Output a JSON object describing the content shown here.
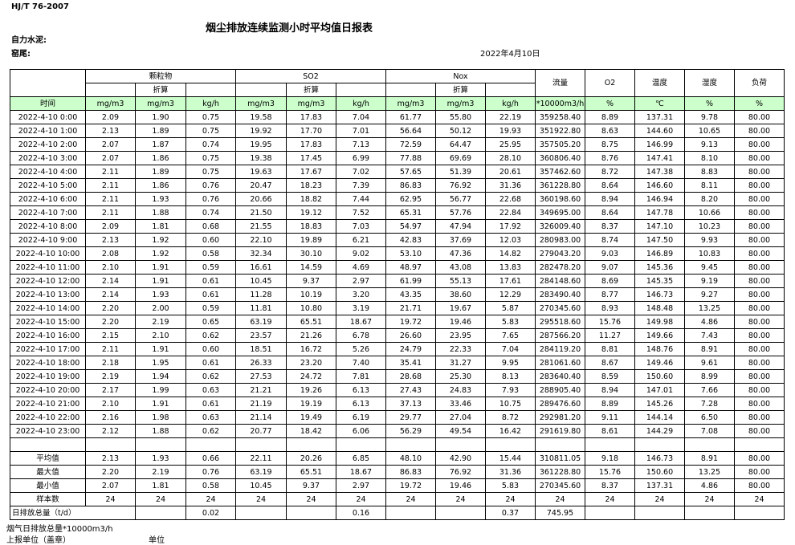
{
  "header": {
    "standard": "HJ/T  76-2007",
    "title": "烟尘排放连续监测小时平均值日报表",
    "company": "自力水泥:",
    "unit": "窑尾:",
    "date": "2022年4月10日"
  },
  "table": {
    "groups": [
      "颗粒物",
      "SO2",
      "Nox"
    ],
    "sub": [
      "折算",
      "折算",
      "折算"
    ],
    "single_headers": [
      "流量",
      "O2",
      "温度",
      "湿度",
      "负荷"
    ],
    "units": [
      "时间",
      "mg/m3",
      "mg/m3",
      "kg/h",
      "mg/m3",
      "mg/m3",
      "kg/h",
      "mg/m3",
      "mg/m3",
      "kg/h",
      "*10000m3/h",
      "%",
      "℃",
      "%",
      "%"
    ],
    "rows": [
      [
        "2022-4-10 0:00",
        "2.09",
        "1.90",
        "0.75",
        "19.58",
        "17.83",
        "7.04",
        "61.77",
        "55.80",
        "22.19",
        "359258.40",
        "8.89",
        "137.31",
        "9.78",
        "80.00"
      ],
      [
        "2022-4-10 1:00",
        "2.13",
        "1.89",
        "0.75",
        "19.92",
        "17.70",
        "7.01",
        "56.64",
        "50.12",
        "19.93",
        "351922.80",
        "8.63",
        "144.60",
        "10.65",
        "80.00"
      ],
      [
        "2022-4-10 2:00",
        "2.07",
        "1.87",
        "0.74",
        "19.95",
        "17.83",
        "7.13",
        "72.59",
        "64.47",
        "25.95",
        "357505.20",
        "8.75",
        "146.99",
        "9.13",
        "80.00"
      ],
      [
        "2022-4-10 3:00",
        "2.07",
        "1.86",
        "0.75",
        "19.38",
        "17.45",
        "6.99",
        "77.88",
        "69.69",
        "28.10",
        "360806.40",
        "8.76",
        "147.41",
        "8.10",
        "80.00"
      ],
      [
        "2022-4-10 4:00",
        "2.11",
        "1.89",
        "0.75",
        "19.63",
        "17.67",
        "7.02",
        "57.65",
        "51.39",
        "20.61",
        "357462.60",
        "8.72",
        "147.38",
        "8.83",
        "80.00"
      ],
      [
        "2022-4-10 5:00",
        "2.11",
        "1.86",
        "0.76",
        "20.47",
        "18.23",
        "7.39",
        "86.83",
        "76.92",
        "31.36",
        "361228.80",
        "8.64",
        "146.60",
        "8.11",
        "80.00"
      ],
      [
        "2022-4-10 6:00",
        "2.11",
        "1.93",
        "0.76",
        "20.66",
        "18.82",
        "7.44",
        "62.95",
        "56.77",
        "22.68",
        "360198.60",
        "8.94",
        "146.94",
        "8.20",
        "80.00"
      ],
      [
        "2022-4-10 7:00",
        "2.11",
        "1.88",
        "0.74",
        "21.50",
        "19.12",
        "7.52",
        "65.31",
        "57.76",
        "22.84",
        "349695.00",
        "8.64",
        "147.78",
        "10.66",
        "80.00"
      ],
      [
        "2022-4-10 8:00",
        "2.09",
        "1.81",
        "0.68",
        "21.55",
        "18.83",
        "7.03",
        "54.97",
        "47.94",
        "17.92",
        "326009.40",
        "8.37",
        "147.10",
        "10.23",
        "80.00"
      ],
      [
        "2022-4-10 9:00",
        "2.13",
        "1.92",
        "0.60",
        "22.10",
        "19.89",
        "6.21",
        "42.83",
        "37.69",
        "12.03",
        "280983.00",
        "8.74",
        "147.50",
        "9.93",
        "80.00"
      ],
      [
        "2022-4-10 10:00",
        "2.08",
        "1.92",
        "0.58",
        "32.34",
        "30.10",
        "9.02",
        "53.10",
        "47.36",
        "14.82",
        "279043.20",
        "9.03",
        "146.89",
        "10.83",
        "80.00"
      ],
      [
        "2022-4-10 11:00",
        "2.10",
        "1.91",
        "0.59",
        "16.61",
        "14.59",
        "4.69",
        "48.97",
        "43.08",
        "13.83",
        "282478.20",
        "9.07",
        "145.36",
        "9.45",
        "80.00"
      ],
      [
        "2022-4-10 12:00",
        "2.14",
        "1.91",
        "0.61",
        "10.45",
        "9.37",
        "2.97",
        "61.99",
        "55.13",
        "17.61",
        "284148.60",
        "8.69",
        "145.35",
        "9.19",
        "80.00"
      ],
      [
        "2022-4-10 13:00",
        "2.14",
        "1.93",
        "0.61",
        "11.28",
        "10.19",
        "3.20",
        "43.35",
        "38.60",
        "12.29",
        "283490.40",
        "8.77",
        "146.73",
        "9.27",
        "80.00"
      ],
      [
        "2022-4-10 14:00",
        "2.20",
        "2.00",
        "0.59",
        "11.81",
        "10.80",
        "3.19",
        "21.71",
        "19.67",
        "5.87",
        "270345.60",
        "8.93",
        "148.48",
        "13.25",
        "80.00"
      ],
      [
        "2022-4-10 15:00",
        "2.20",
        "2.19",
        "0.65",
        "63.19",
        "65.51",
        "18.67",
        "19.72",
        "19.46",
        "5.83",
        "295518.60",
        "15.76",
        "149.98",
        "4.86",
        "80.00"
      ],
      [
        "2022-4-10 16:00",
        "2.15",
        "2.10",
        "0.62",
        "23.57",
        "21.26",
        "6.78",
        "26.60",
        "23.95",
        "7.65",
        "287566.20",
        "11.27",
        "149.66",
        "7.43",
        "80.00"
      ],
      [
        "2022-4-10 17:00",
        "2.11",
        "1.91",
        "0.60",
        "18.51",
        "16.72",
        "5.26",
        "24.79",
        "22.33",
        "7.04",
        "284119.20",
        "8.81",
        "148.76",
        "8.91",
        "80.00"
      ],
      [
        "2022-4-10 18:00",
        "2.18",
        "1.95",
        "0.61",
        "26.33",
        "23.20",
        "7.40",
        "35.41",
        "31.27",
        "9.95",
        "281061.60",
        "8.67",
        "149.46",
        "9.61",
        "80.00"
      ],
      [
        "2022-4-10 19:00",
        "2.19",
        "1.94",
        "0.62",
        "27.53",
        "24.72",
        "7.81",
        "28.68",
        "25.30",
        "8.13",
        "283640.40",
        "8.59",
        "150.60",
        "8.99",
        "80.00"
      ],
      [
        "2022-4-10 20:00",
        "2.17",
        "1.99",
        "0.63",
        "21.21",
        "19.26",
        "6.13",
        "27.43",
        "24.83",
        "7.93",
        "288905.40",
        "8.94",
        "147.01",
        "7.66",
        "80.00"
      ],
      [
        "2022-4-10 21:00",
        "2.10",
        "1.91",
        "0.61",
        "21.19",
        "19.19",
        "6.13",
        "37.13",
        "33.46",
        "10.75",
        "289476.60",
        "8.89",
        "145.26",
        "7.28",
        "80.00"
      ],
      [
        "2022-4-10 22:00",
        "2.16",
        "1.98",
        "0.63",
        "21.14",
        "19.49",
        "6.19",
        "29.77",
        "27.04",
        "8.72",
        "292981.20",
        "9.11",
        "144.14",
        "6.50",
        "80.00"
      ],
      [
        "2022-4-10 23:00",
        "2.12",
        "1.88",
        "0.62",
        "20.77",
        "18.42",
        "6.06",
        "56.29",
        "49.54",
        "16.42",
        "291619.80",
        "8.61",
        "144.29",
        "7.08",
        "80.00"
      ]
    ],
    "summary": [
      [
        "平均值",
        "2.13",
        "1.93",
        "0.66",
        "22.11",
        "20.26",
        "6.85",
        "48.10",
        "42.90",
        "15.44",
        "310811.05",
        "9.18",
        "146.73",
        "8.91",
        "80.00"
      ],
      [
        "最大值",
        "2.20",
        "2.19",
        "0.76",
        "63.19",
        "65.51",
        "18.67",
        "86.83",
        "76.92",
        "31.36",
        "361228.80",
        "15.76",
        "150.60",
        "13.25",
        "80.00"
      ],
      [
        "最小值",
        "2.07",
        "1.81",
        "0.58",
        "10.45",
        "9.37",
        "2.97",
        "19.72",
        "19.46",
        "5.83",
        "270345.60",
        "8.37",
        "137.31",
        "4.86",
        "80.00"
      ],
      [
        "样本数",
        "24",
        "24",
        "24",
        "24",
        "24",
        "24",
        "24",
        "24",
        "24",
        "24",
        "24",
        "24",
        "24",
        "24"
      ]
    ],
    "total": [
      "日排放总量（t/d）",
      null,
      null,
      "0.02",
      null,
      null,
      "0.16",
      null,
      null,
      "0.37",
      "745.95",
      null,
      null,
      null,
      null
    ]
  },
  "footer": {
    "line1": "烟气日排放总量*10000m3/h",
    "line2": "上报单位（盖章）",
    "line2_right": "单位"
  }
}
